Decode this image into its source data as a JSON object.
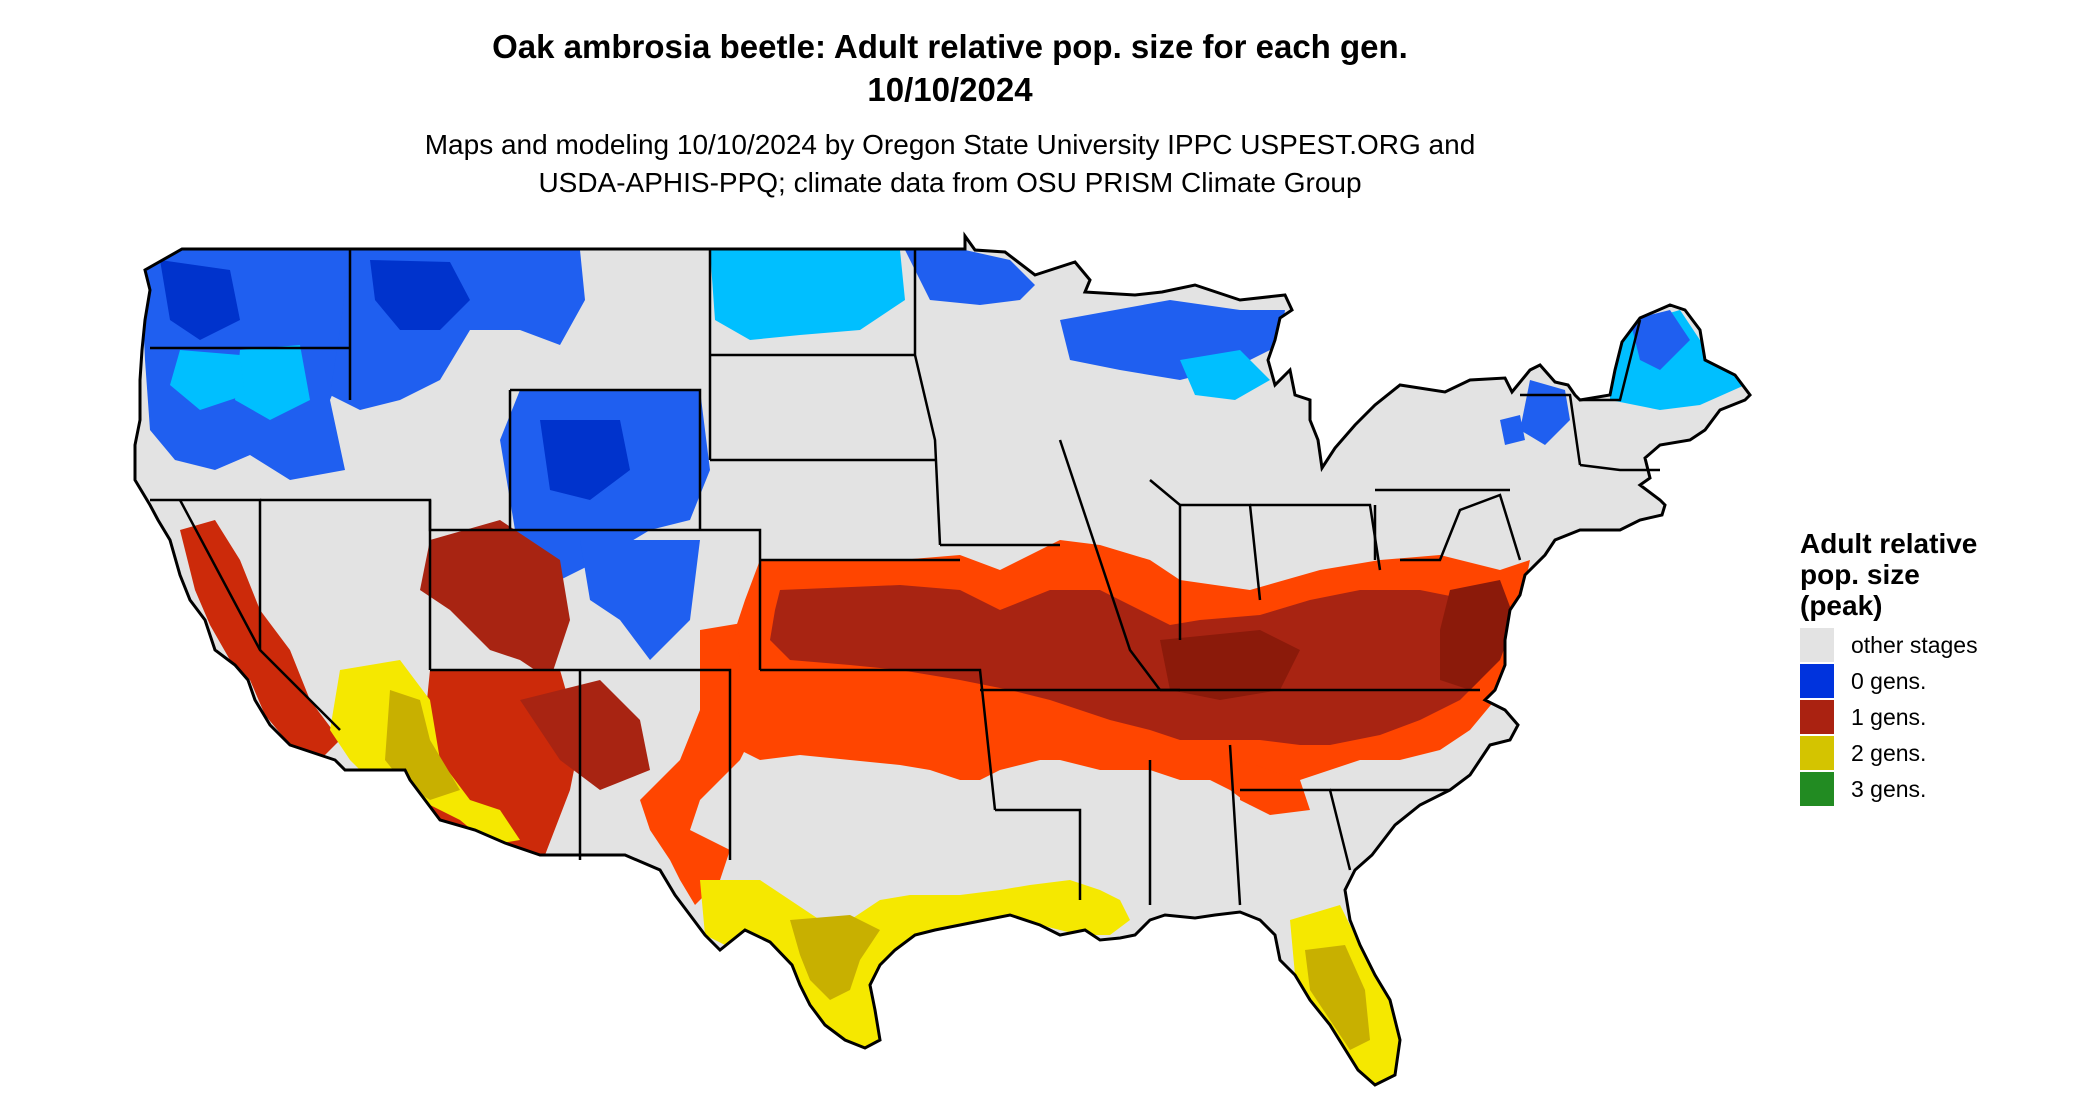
{
  "header": {
    "title_line1": "Oak ambrosia beetle: Adult relative pop. size for each gen.",
    "title_line2": "10/10/2024",
    "subtitle_line1": "Maps and modeling 10/10/2024 by Oregon State University IPPC USPEST.ORG and",
    "subtitle_line2": "USDA-APHIS-PPQ; climate data from OSU PRISM Climate Group"
  },
  "colors": {
    "background": "#ffffff",
    "land_other": "#e3e3e3",
    "gen0_dark": "#0033cc",
    "gen0_mid": "#1f5ff0",
    "gen0_light": "#00bfff",
    "gen1_dark": "#8b1a0a",
    "gen1_mid": "#a82412",
    "gen1_light": "#ff4500",
    "gen2_bright": "#f5e800",
    "gen2_olive": "#c8b000",
    "gen3": "#228b22",
    "border": "#000000"
  },
  "legend": {
    "title_line1": "Adult relative",
    "title_line2": "pop. size",
    "title_line3": "(peak)",
    "items": [
      {
        "label": "other stages",
        "color": "#e3e3e3"
      },
      {
        "label": "0 gens.",
        "color": "#0033dd"
      },
      {
        "label": "1 gens.",
        "color": "#aa2211"
      },
      {
        "label": "2 gens.",
        "color": "#d4c400"
      },
      {
        "label": "3 gens.",
        "color": "#228b22"
      }
    ]
  }
}
